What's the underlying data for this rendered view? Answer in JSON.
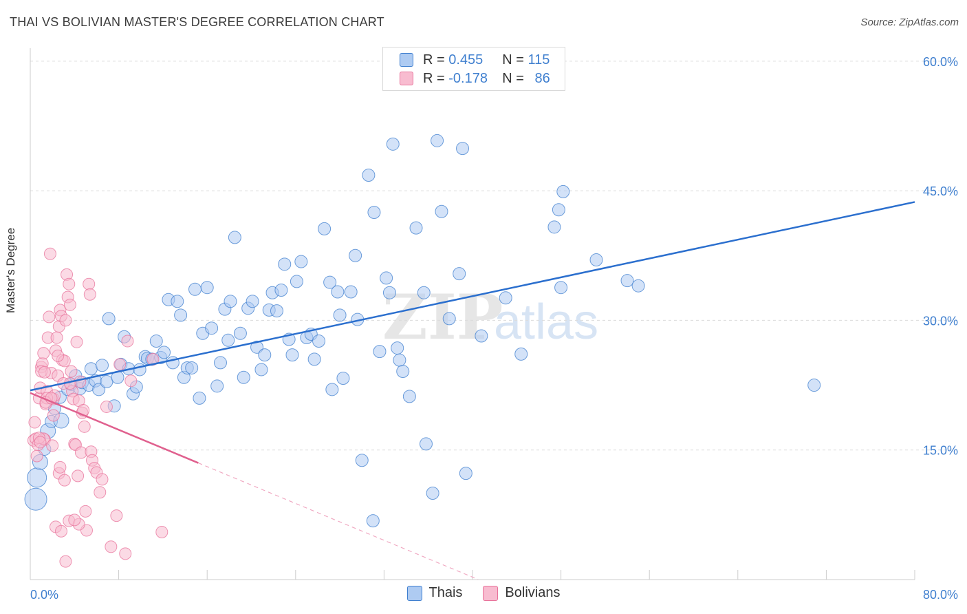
{
  "title": "THAI VS BOLIVIAN MASTER'S DEGREE CORRELATION CHART",
  "source": "Source: ZipAtlas.com",
  "watermark": {
    "zip": "ZIP",
    "atlas": "atlas"
  },
  "legend": {
    "rows": [
      {
        "r_label": "R = ",
        "r_value": "0.455",
        "n_label": "N = ",
        "n_value": "115",
        "color": "#aecbf2"
      },
      {
        "r_label": "R = ",
        "r_value": "-0.178",
        "n_label": "N = ",
        "n_value": "86",
        "color": "#f8bcd0"
      }
    ]
  },
  "bottom_legend": [
    {
      "label": "Thais",
      "color": "#aecbf2"
    },
    {
      "label": "Bolivians",
      "color": "#f8bcd0"
    }
  ],
  "chart_data": {
    "type": "scatter",
    "ylabel": "Master's Degree",
    "xlim": [
      0,
      80
    ],
    "ylim": [
      0,
      61.5
    ],
    "x_tick_labels": [
      {
        "value": 0,
        "label": "0.0%"
      },
      {
        "value": 80,
        "label": "80.0%"
      }
    ],
    "y_tick_labels": [
      {
        "value": 15,
        "label": "15.0%"
      },
      {
        "value": 30,
        "label": "30.0%"
      },
      {
        "value": 45,
        "label": "45.0%"
      },
      {
        "value": 60,
        "label": "60.0%"
      }
    ],
    "y_gridlines": [
      15,
      30,
      45,
      60
    ],
    "x_minor_ticks": [
      8,
      16,
      24,
      32,
      40,
      48,
      56,
      64,
      72,
      80
    ],
    "series": [
      {
        "name": "Thais",
        "color": "#3f7fcf",
        "fill": "#aecbf2",
        "trend": {
          "x0": 0,
          "y0": 21.9,
          "x1": 80,
          "y1": 43.7,
          "dashed_from": null
        },
        "points": [
          [
            0.5,
            9.3
          ],
          [
            0.6,
            11.8
          ],
          [
            0.9,
            13.6
          ],
          [
            1.3,
            15.1
          ],
          [
            1.6,
            17.2
          ],
          [
            1.9,
            18.3
          ],
          [
            2.2,
            19.8
          ],
          [
            2.8,
            18.4
          ],
          [
            2.7,
            21.1
          ],
          [
            3.4,
            22.0
          ],
          [
            3.7,
            22.6
          ],
          [
            4.1,
            23.6
          ],
          [
            4.5,
            22.1
          ],
          [
            4.7,
            22.8
          ],
          [
            5.3,
            22.5
          ],
          [
            5.5,
            24.4
          ],
          [
            5.9,
            23.0
          ],
          [
            6.2,
            22.0
          ],
          [
            6.5,
            24.8
          ],
          [
            6.9,
            22.9
          ],
          [
            7.1,
            30.2
          ],
          [
            7.6,
            20.1
          ],
          [
            7.9,
            23.4
          ],
          [
            8.2,
            24.9
          ],
          [
            8.5,
            28.1
          ],
          [
            8.9,
            24.4
          ],
          [
            9.3,
            21.5
          ],
          [
            9.6,
            22.3
          ],
          [
            9.9,
            24.3
          ],
          [
            10.4,
            25.8
          ],
          [
            10.6,
            25.6
          ],
          [
            11.0,
            25.5
          ],
          [
            11.4,
            27.6
          ],
          [
            11.8,
            25.7
          ],
          [
            12.1,
            26.3
          ],
          [
            12.5,
            32.4
          ],
          [
            12.9,
            25.1
          ],
          [
            13.3,
            32.2
          ],
          [
            13.6,
            30.6
          ],
          [
            13.9,
            23.4
          ],
          [
            14.2,
            24.5
          ],
          [
            14.6,
            24.5
          ],
          [
            14.9,
            33.6
          ],
          [
            15.3,
            21.0
          ],
          [
            15.6,
            28.5
          ],
          [
            16.0,
            33.8
          ],
          [
            16.4,
            29.1
          ],
          [
            16.9,
            22.4
          ],
          [
            17.2,
            25.1
          ],
          [
            17.6,
            31.3
          ],
          [
            17.9,
            27.7
          ],
          [
            18.1,
            32.2
          ],
          [
            18.5,
            39.6
          ],
          [
            19.0,
            28.5
          ],
          [
            19.3,
            23.4
          ],
          [
            19.7,
            31.4
          ],
          [
            20.1,
            32.2
          ],
          [
            20.5,
            26.9
          ],
          [
            20.9,
            24.3
          ],
          [
            21.2,
            26.0
          ],
          [
            21.6,
            31.2
          ],
          [
            21.9,
            33.2
          ],
          [
            22.3,
            31.1
          ],
          [
            22.7,
            33.5
          ],
          [
            23.0,
            36.5
          ],
          [
            23.4,
            27.8
          ],
          [
            23.7,
            26.0
          ],
          [
            24.1,
            34.5
          ],
          [
            24.5,
            36.8
          ],
          [
            25.0,
            28.0
          ],
          [
            25.4,
            28.4
          ],
          [
            25.7,
            25.5
          ],
          [
            26.1,
            27.6
          ],
          [
            26.6,
            40.6
          ],
          [
            27.1,
            34.4
          ],
          [
            27.3,
            22.0
          ],
          [
            27.8,
            33.3
          ],
          [
            28.0,
            30.6
          ],
          [
            28.3,
            23.3
          ],
          [
            29.0,
            33.3
          ],
          [
            29.4,
            37.5
          ],
          [
            29.6,
            30.1
          ],
          [
            30.6,
            46.8
          ],
          [
            31.1,
            42.5
          ],
          [
            31.6,
            26.4
          ],
          [
            32.2,
            34.9
          ],
          [
            32.5,
            33.2
          ],
          [
            32.8,
            50.4
          ],
          [
            33.2,
            26.8
          ],
          [
            33.4,
            25.4
          ],
          [
            33.7,
            24.1
          ],
          [
            34.3,
            21.2
          ],
          [
            34.9,
            40.7
          ],
          [
            35.6,
            33.2
          ],
          [
            35.8,
            15.7
          ],
          [
            36.4,
            10.0
          ],
          [
            36.8,
            50.8
          ],
          [
            37.2,
            42.6
          ],
          [
            37.9,
            30.2
          ],
          [
            38.8,
            35.4
          ],
          [
            39.1,
            49.9
          ],
          [
            39.4,
            12.3
          ],
          [
            40.8,
            28.2
          ],
          [
            43.0,
            32.6
          ],
          [
            44.4,
            26.1
          ],
          [
            47.4,
            40.8
          ],
          [
            47.8,
            42.8
          ],
          [
            48.0,
            33.8
          ],
          [
            48.2,
            44.9
          ],
          [
            51.2,
            37.0
          ],
          [
            54.0,
            34.6
          ],
          [
            55.0,
            34.0
          ],
          [
            70.9,
            22.5
          ],
          [
            30.0,
            13.8
          ],
          [
            31.0,
            6.8
          ]
        ],
        "point_sizes_large": [
          [
            0.5,
            9.3
          ],
          [
            0.6,
            11.8
          ],
          [
            0.9,
            13.6
          ],
          [
            1.6,
            17.2
          ],
          [
            2.8,
            18.4
          ]
        ]
      },
      {
        "name": "Bolivians",
        "color": "#e8739b",
        "fill": "#f8bcd0",
        "trend": {
          "x0": 0,
          "y0": 21.6,
          "x1": 15.2,
          "y1": 13.5,
          "dashed_to_x": 40.5
        },
        "points": [
          [
            0.3,
            16.1
          ],
          [
            0.4,
            18.2
          ],
          [
            0.5,
            16.3
          ],
          [
            0.6,
            14.3
          ],
          [
            0.7,
            15.6
          ],
          [
            0.8,
            21.0
          ],
          [
            0.9,
            22.2
          ],
          [
            1.0,
            24.6
          ],
          [
            1.1,
            25.0
          ],
          [
            1.2,
            26.2
          ],
          [
            1.3,
            16.2
          ],
          [
            1.4,
            20.3
          ],
          [
            1.5,
            21.8
          ],
          [
            1.6,
            28.0
          ],
          [
            1.7,
            30.4
          ],
          [
            1.8,
            37.7
          ],
          [
            1.9,
            23.9
          ],
          [
            2.0,
            15.5
          ],
          [
            2.1,
            20.9
          ],
          [
            2.2,
            21.3
          ],
          [
            2.3,
            26.5
          ],
          [
            2.4,
            28.0
          ],
          [
            2.5,
            23.6
          ],
          [
            2.6,
            29.3
          ],
          [
            2.7,
            31.2
          ],
          [
            2.8,
            30.5
          ],
          [
            2.9,
            25.4
          ],
          [
            3.0,
            22.7
          ],
          [
            3.1,
            25.3
          ],
          [
            3.2,
            30.0
          ],
          [
            3.3,
            35.3
          ],
          [
            3.4,
            32.7
          ],
          [
            3.5,
            34.2
          ],
          [
            3.6,
            31.8
          ],
          [
            3.7,
            24.1
          ],
          [
            3.8,
            21.8
          ],
          [
            3.9,
            20.9
          ],
          [
            4.0,
            15.7
          ],
          [
            4.1,
            15.6
          ],
          [
            4.2,
            27.5
          ],
          [
            4.3,
            12.0
          ],
          [
            4.4,
            20.7
          ],
          [
            4.5,
            22.9
          ],
          [
            4.6,
            14.7
          ],
          [
            4.7,
            19.3
          ],
          [
            4.8,
            19.6
          ],
          [
            4.9,
            17.7
          ],
          [
            5.0,
            7.9
          ],
          [
            5.1,
            5.7
          ],
          [
            5.3,
            34.2
          ],
          [
            5.4,
            33.0
          ],
          [
            5.5,
            14.8
          ],
          [
            5.6,
            13.8
          ],
          [
            5.8,
            12.9
          ],
          [
            6.0,
            12.4
          ],
          [
            6.3,
            10.1
          ],
          [
            6.5,
            11.6
          ],
          [
            6.9,
            20.0
          ],
          [
            7.3,
            3.8
          ],
          [
            7.8,
            7.4
          ],
          [
            8.1,
            24.9
          ],
          [
            8.6,
            3.0
          ],
          [
            8.8,
            27.6
          ],
          [
            9.1,
            23.0
          ],
          [
            11.1,
            25.5
          ],
          [
            11.9,
            5.5
          ],
          [
            1.2,
            16.3
          ],
          [
            1.5,
            21.0
          ],
          [
            2.3,
            6.1
          ],
          [
            2.6,
            12.3
          ],
          [
            2.7,
            13.0
          ],
          [
            2.8,
            5.6
          ],
          [
            3.1,
            11.5
          ],
          [
            3.5,
            6.8
          ],
          [
            4.4,
            6.4
          ],
          [
            0.8,
            16.4
          ],
          [
            1.0,
            24.1
          ],
          [
            1.3,
            24.0
          ],
          [
            2.1,
            19.0
          ],
          [
            3.2,
            2.1
          ],
          [
            3.6,
            22.7
          ],
          [
            4.0,
            6.9
          ],
          [
            0.9,
            15.9
          ],
          [
            1.4,
            20.5
          ],
          [
            2.5,
            25.9
          ],
          [
            1.9,
            21.0
          ]
        ]
      }
    ]
  }
}
